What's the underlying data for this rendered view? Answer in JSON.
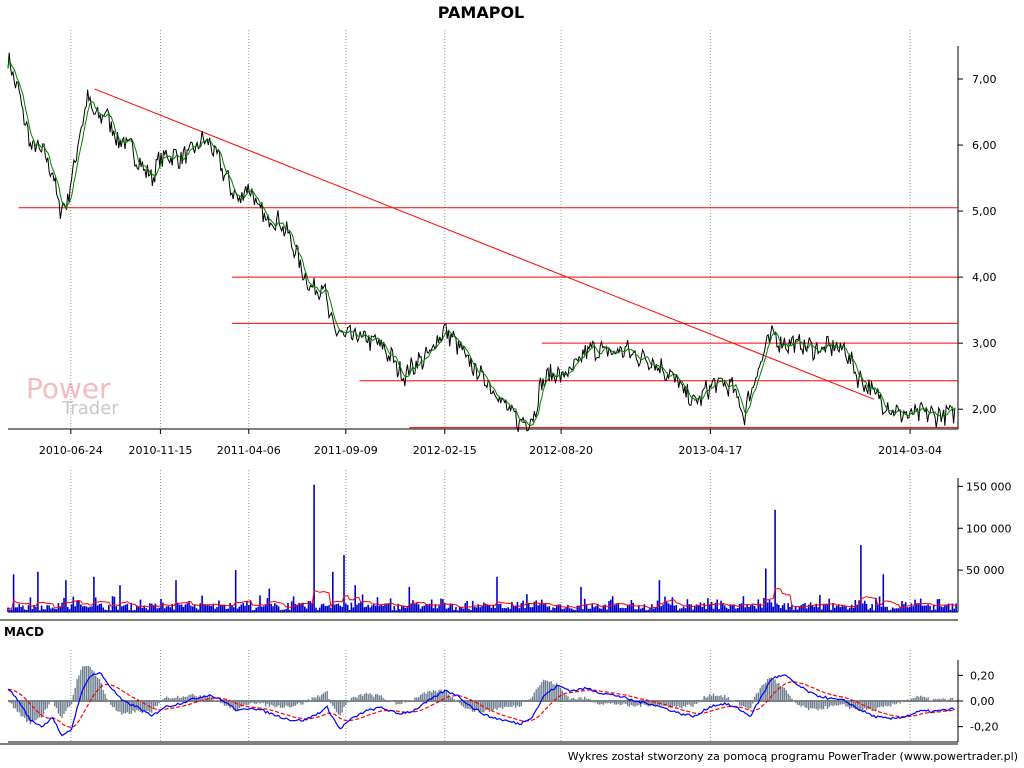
{
  "chart_data": {
    "title": "PAMAPOL",
    "footer": "Wykres został stworzony za pomocą programu PowerTrader (www.powertrader.pl)",
    "watermark": {
      "line1": "Power",
      "line2": "Trader"
    },
    "x_axis": {
      "start": "2010-03-15",
      "end": "2014-05-20",
      "tick_labels": [
        "2010-06-24",
        "2010-11-15",
        "2011-04-06",
        "2011-09-09",
        "2012-02-15",
        "2012-08-20",
        "2013-04-17",
        "2014-03-04"
      ]
    },
    "price": {
      "type": "line",
      "ylim": [
        1.7,
        7.5
      ],
      "y_ticks": [
        2.0,
        3.0,
        4.0,
        5.0,
        6.0,
        7.0
      ],
      "y_tick_labels": [
        "2,00",
        "3,00",
        "4,00",
        "5,00",
        "6,00",
        "7,00"
      ],
      "series_color": "#000000",
      "ma_color": "#008000",
      "series": [
        [
          "2010-03-15",
          7.3
        ],
        [
          "2010-04-01",
          6.8
        ],
        [
          "2010-04-20",
          6.0
        ],
        [
          "2010-05-10",
          5.9
        ],
        [
          "2010-05-25",
          5.6
        ],
        [
          "2010-06-07",
          5.0
        ],
        [
          "2010-06-20",
          5.2
        ],
        [
          "2010-07-05",
          6.0
        ],
        [
          "2010-07-20",
          6.7
        ],
        [
          "2010-08-05",
          6.4
        ],
        [
          "2010-08-20",
          6.5
        ],
        [
          "2010-09-05",
          6.1
        ],
        [
          "2010-09-25",
          6.0
        ],
        [
          "2010-10-15",
          5.7
        ],
        [
          "2010-11-01",
          5.5
        ],
        [
          "2010-11-15",
          5.8
        ],
        [
          "2010-12-01",
          5.85
        ],
        [
          "2010-12-20",
          5.8
        ],
        [
          "2011-01-10",
          5.95
        ],
        [
          "2011-01-25",
          6.1
        ],
        [
          "2011-02-10",
          5.9
        ],
        [
          "2011-03-01",
          5.5
        ],
        [
          "2011-03-20",
          5.15
        ],
        [
          "2011-04-06",
          5.4
        ],
        [
          "2011-04-20",
          5.05
        ],
        [
          "2011-05-05",
          4.85
        ],
        [
          "2011-05-20",
          4.9
        ],
        [
          "2011-06-05",
          4.7
        ],
        [
          "2011-06-20",
          4.4
        ],
        [
          "2011-07-05",
          4.0
        ],
        [
          "2011-07-20",
          3.8
        ],
        [
          "2011-08-05",
          3.9
        ],
        [
          "2011-08-15",
          3.3
        ],
        [
          "2011-08-30",
          3.15
        ],
        [
          "2011-09-09",
          3.1
        ],
        [
          "2011-09-25",
          3.1
        ],
        [
          "2011-10-15",
          3.05
        ],
        [
          "2011-11-01",
          3.0
        ],
        [
          "2011-11-20",
          2.8
        ],
        [
          "2011-12-10",
          2.5
        ],
        [
          "2011-12-30",
          2.7
        ],
        [
          "2012-01-20",
          2.8
        ],
        [
          "2012-02-05",
          3.1
        ],
        [
          "2012-02-15",
          3.2
        ],
        [
          "2012-03-05",
          3.0
        ],
        [
          "2012-03-25",
          2.7
        ],
        [
          "2012-04-15",
          2.5
        ],
        [
          "2012-05-05",
          2.3
        ],
        [
          "2012-05-25",
          2.0
        ],
        [
          "2012-06-15",
          1.8
        ],
        [
          "2012-07-05",
          1.85
        ],
        [
          "2012-07-20",
          2.4
        ],
        [
          "2012-08-05",
          2.55
        ],
        [
          "2012-08-20",
          2.5
        ],
        [
          "2012-09-10",
          2.6
        ],
        [
          "2012-10-01",
          2.9
        ],
        [
          "2012-10-20",
          2.9
        ],
        [
          "2012-11-10",
          2.85
        ],
        [
          "2012-12-01",
          2.9
        ],
        [
          "2012-12-20",
          2.8
        ],
        [
          "2013-01-10",
          2.75
        ],
        [
          "2013-02-01",
          2.6
        ],
        [
          "2013-02-20",
          2.45
        ],
        [
          "2013-03-10",
          2.2
        ],
        [
          "2013-03-25",
          2.1
        ],
        [
          "2013-04-17",
          2.35
        ],
        [
          "2013-05-05",
          2.4
        ],
        [
          "2013-05-25",
          2.3
        ],
        [
          "2013-06-10",
          1.9
        ],
        [
          "2013-06-25",
          2.4
        ],
        [
          "2013-07-10",
          2.8
        ],
        [
          "2013-07-25",
          3.15
        ],
        [
          "2013-08-10",
          3.0
        ],
        [
          "2013-08-30",
          3.0
        ],
        [
          "2013-09-20",
          2.95
        ],
        [
          "2013-10-10",
          2.9
        ],
        [
          "2013-10-30",
          2.95
        ],
        [
          "2013-11-20",
          2.9
        ],
        [
          "2013-12-10",
          2.5
        ],
        [
          "2013-12-30",
          2.3
        ],
        [
          "2014-01-20",
          2.1
        ],
        [
          "2014-02-10",
          1.95
        ],
        [
          "2014-03-04",
          1.9
        ],
        [
          "2014-03-25",
          1.95
        ],
        [
          "2014-04-15",
          1.9
        ],
        [
          "2014-05-15",
          1.95
        ]
      ],
      "trendline": {
        "color": "#ff0000",
        "from": [
          "2010-08-01",
          6.85
        ],
        "to": [
          "2014-01-05",
          2.15
        ]
      },
      "support_lines": [
        {
          "value": 5.05,
          "from": "2010-04-01",
          "to": "2014-05-20"
        },
        {
          "value": 4.0,
          "from": "2011-03-10",
          "to": "2014-05-20"
        },
        {
          "value": 3.3,
          "from": "2011-03-10",
          "to": "2014-05-20"
        },
        {
          "value": 3.0,
          "from": "2012-07-20",
          "to": "2014-05-20"
        },
        {
          "value": 2.43,
          "from": "2011-10-01",
          "to": "2014-05-20"
        },
        {
          "value": 1.72,
          "from": "2011-12-20",
          "to": "2014-05-20"
        }
      ]
    },
    "volume": {
      "type": "bar",
      "ylim": [
        0,
        160000
      ],
      "y_ticks": [
        50000,
        100000,
        150000
      ],
      "y_tick_labels": [
        "50 000",
        "100 000",
        "150 000"
      ],
      "bar_color": "#0000cc",
      "ma_color": "#ff0000",
      "spikes": [
        [
          "2010-03-25",
          45000
        ],
        [
          "2010-05-01",
          48000
        ],
        [
          "2010-06-15",
          38000
        ],
        [
          "2010-08-01",
          42000
        ],
        [
          "2010-09-10",
          32000
        ],
        [
          "2010-12-10",
          38000
        ],
        [
          "2011-03-15",
          50000
        ],
        [
          "2011-05-10",
          28000
        ],
        [
          "2011-07-20",
          152000
        ],
        [
          "2011-09-05",
          68000
        ],
        [
          "2011-08-20",
          48000
        ],
        [
          "2011-09-25",
          32000
        ],
        [
          "2011-12-20",
          30000
        ],
        [
          "2012-05-10",
          42000
        ],
        [
          "2012-09-20",
          30000
        ],
        [
          "2013-01-25",
          38000
        ],
        [
          "2013-07-15",
          52000
        ],
        [
          "2013-07-30",
          122000
        ],
        [
          "2013-12-15",
          80000
        ],
        [
          "2014-01-20",
          45000
        ]
      ]
    },
    "macd": {
      "type": "line",
      "title": "MACD",
      "ylim": [
        -0.32,
        0.32
      ],
      "y_ticks": [
        0.2,
        0.0,
        -0.2
      ],
      "y_tick_labels": [
        "0,20",
        "0,00",
        "-0,20"
      ],
      "macd_color": "#0000ff",
      "signal_color": "#ff0000",
      "hist_color": "#708090",
      "series": [
        [
          "2010-03-15",
          0.1
        ],
        [
          "2010-04-01",
          0.0
        ],
        [
          "2010-04-20",
          -0.15
        ],
        [
          "2010-05-10",
          -0.2
        ],
        [
          "2010-05-25",
          -0.12
        ],
        [
          "2010-06-10",
          -0.28
        ],
        [
          "2010-06-25",
          -0.22
        ],
        [
          "2010-07-10",
          0.05
        ],
        [
          "2010-07-25",
          0.2
        ],
        [
          "2010-08-10",
          0.22
        ],
        [
          "2010-08-25",
          0.12
        ],
        [
          "2010-09-15",
          0.0
        ],
        [
          "2010-10-10",
          -0.05
        ],
        [
          "2010-11-01",
          -0.12
        ],
        [
          "2010-11-20",
          -0.05
        ],
        [
          "2010-12-15",
          -0.02
        ],
        [
          "2011-01-10",
          0.02
        ],
        [
          "2011-02-01",
          0.05
        ],
        [
          "2011-02-25",
          0.0
        ],
        [
          "2011-03-20",
          -0.08
        ],
        [
          "2011-04-10",
          -0.05
        ],
        [
          "2011-05-01",
          -0.08
        ],
        [
          "2011-05-25",
          -0.12
        ],
        [
          "2011-06-15",
          -0.15
        ],
        [
          "2011-07-05",
          -0.15
        ],
        [
          "2011-07-25",
          -0.1
        ],
        [
          "2011-08-10",
          -0.05
        ],
        [
          "2011-08-30",
          -0.22
        ],
        [
          "2011-09-15",
          -0.15
        ],
        [
          "2011-10-10",
          -0.08
        ],
        [
          "2011-11-05",
          -0.05
        ],
        [
          "2011-12-01",
          -0.1
        ],
        [
          "2011-12-25",
          -0.08
        ],
        [
          "2012-01-20",
          0.0
        ],
        [
          "2012-02-15",
          0.08
        ],
        [
          "2012-03-05",
          0.05
        ],
        [
          "2012-03-30",
          -0.05
        ],
        [
          "2012-04-25",
          -0.12
        ],
        [
          "2012-05-20",
          -0.15
        ],
        [
          "2012-06-15",
          -0.18
        ],
        [
          "2012-07-05",
          -0.12
        ],
        [
          "2012-07-25",
          0.05
        ],
        [
          "2012-08-15",
          0.12
        ],
        [
          "2012-09-05",
          0.08
        ],
        [
          "2012-10-01",
          0.1
        ],
        [
          "2012-10-25",
          0.06
        ],
        [
          "2012-11-20",
          0.04
        ],
        [
          "2012-12-15",
          0.0
        ],
        [
          "2013-01-10",
          -0.02
        ],
        [
          "2013-02-05",
          -0.06
        ],
        [
          "2013-03-01",
          -0.1
        ],
        [
          "2013-03-25",
          -0.12
        ],
        [
          "2013-04-17",
          -0.04
        ],
        [
          "2013-05-10",
          -0.02
        ],
        [
          "2013-06-01",
          -0.06
        ],
        [
          "2013-06-20",
          -0.12
        ],
        [
          "2013-07-10",
          0.05
        ],
        [
          "2013-07-25",
          0.18
        ],
        [
          "2013-08-15",
          0.2
        ],
        [
          "2013-09-05",
          0.12
        ],
        [
          "2013-09-30",
          0.05
        ],
        [
          "2013-10-25",
          0.02
        ],
        [
          "2013-11-20",
          0.0
        ],
        [
          "2013-12-10",
          -0.06
        ],
        [
          "2014-01-05",
          -0.12
        ],
        [
          "2014-01-30",
          -0.14
        ],
        [
          "2014-02-25",
          -0.12
        ],
        [
          "2014-03-20",
          -0.08
        ],
        [
          "2014-04-15",
          -0.08
        ],
        [
          "2014-05-15",
          -0.06
        ]
      ]
    }
  }
}
